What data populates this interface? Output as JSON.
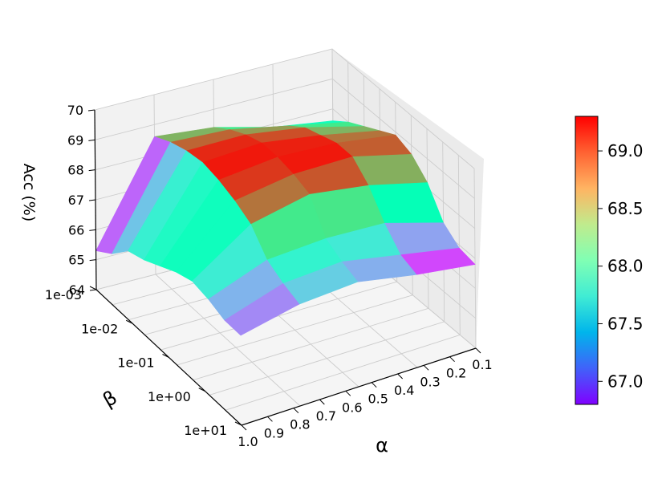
{
  "chart_data": {
    "type": "surface3d",
    "zlabel": "Acc (%)",
    "xlabel": "α",
    "ylabel": "β",
    "x_ticks": [
      "1.0",
      "0.9",
      "0.8",
      "0.7",
      "0.6",
      "0.5",
      "0.4",
      "0.3",
      "0.2",
      "0.1"
    ],
    "y_ticks": [
      "1e-03",
      "1e-02",
      "1e-01",
      "1e+00",
      "1e+01"
    ],
    "z_ticks": [
      "64",
      "65",
      "66",
      "67",
      "68",
      "69",
      "70"
    ],
    "zlim": [
      64,
      70
    ],
    "colorbar": {
      "colormap": "rainbow",
      "min": 66.8,
      "max": 69.3,
      "ticks": [
        "67.0",
        "67.5",
        "68.0",
        "68.5",
        "69.0"
      ]
    },
    "alpha": [
      1.0,
      0.9,
      0.8,
      0.7,
      0.6,
      0.5,
      0.4,
      0.3,
      0.2,
      0.1
    ],
    "beta": [
      "1e-03",
      "1e-02",
      "1e-01",
      "1e+00",
      "1e+01"
    ],
    "z": [
      [
        67.6,
        68.0,
        68.3,
        68.6,
        68.9,
        68.7,
        68.2,
        67.3,
        66.9,
        66.8
      ],
      [
        67.9,
        68.4,
        68.8,
        69.0,
        69.2,
        69.2,
        68.7,
        67.9,
        67.3,
        67.1
      ],
      [
        68.4,
        68.8,
        69.1,
        69.3,
        69.3,
        69.2,
        69.0,
        68.0,
        67.7,
        67.5
      ],
      [
        68.6,
        68.9,
        69.1,
        69.2,
        69.1,
        68.9,
        68.6,
        67.9,
        67.6,
        67.4
      ],
      [
        65.3,
        65.7,
        66.3,
        66.5,
        66.8,
        67.1,
        67.3,
        67.2,
        67.0,
        67.0
      ]
    ]
  }
}
